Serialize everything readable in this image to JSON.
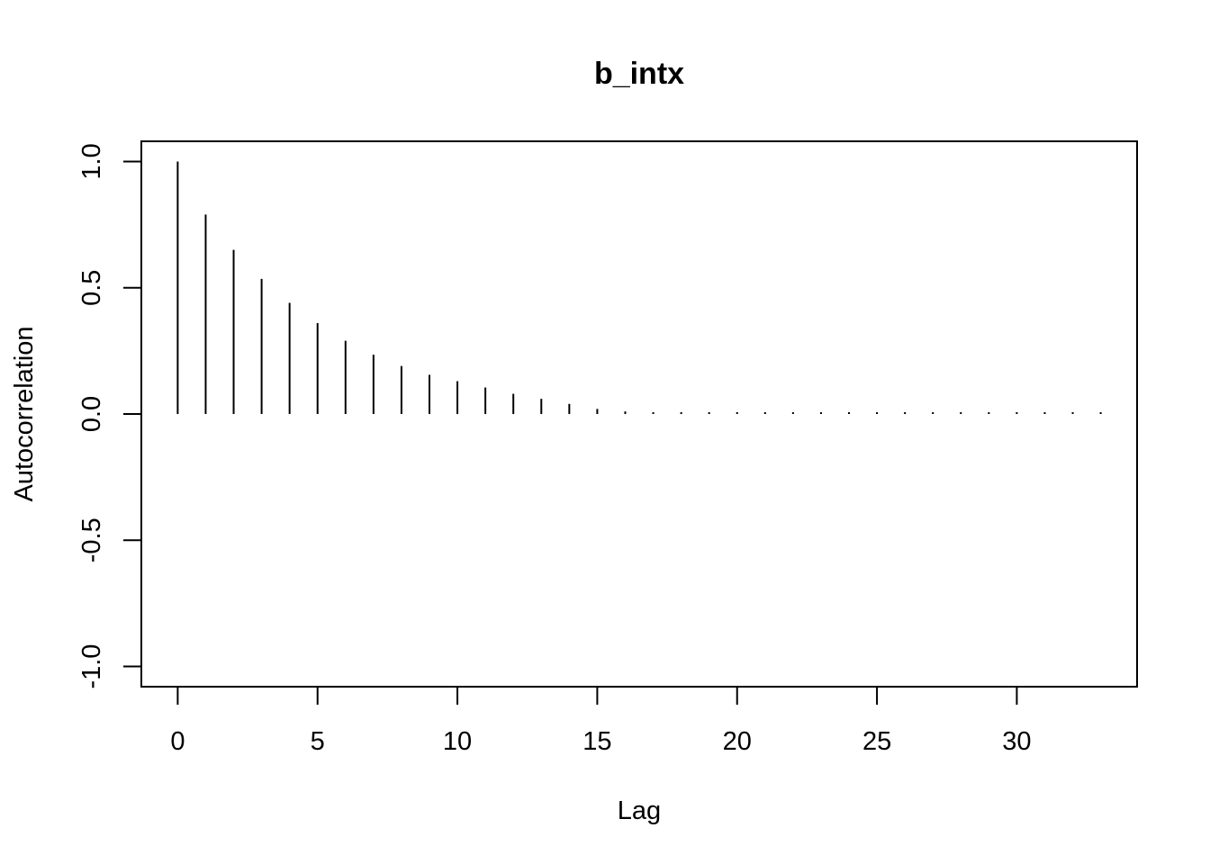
{
  "chart_data": {
    "type": "bar",
    "title": "b_intx",
    "xlabel": "Lag",
    "ylabel": "Autocorrelation",
    "xlim": [
      -1.3,
      34.3
    ],
    "ylim": [
      -1.08,
      1.08
    ],
    "x_ticks": [
      0,
      5,
      10,
      15,
      20,
      25,
      30
    ],
    "x_tick_labels": [
      "0",
      "5",
      "10",
      "15",
      "20",
      "25",
      "30"
    ],
    "y_ticks": [
      -1.0,
      -0.5,
      0.0,
      0.5,
      1.0
    ],
    "y_tick_labels": [
      "-1.0",
      "-0.5",
      "0.0",
      "0.5",
      "1.0"
    ],
    "x": [
      0,
      1,
      2,
      3,
      4,
      5,
      6,
      7,
      8,
      9,
      10,
      11,
      12,
      13,
      14,
      15,
      16,
      17,
      18,
      19,
      20,
      21,
      22,
      23,
      24,
      25,
      26,
      27,
      28,
      29,
      30,
      31,
      32,
      33
    ],
    "values": [
      1.0,
      0.79,
      0.65,
      0.535,
      0.44,
      0.36,
      0.29,
      0.235,
      0.19,
      0.155,
      0.13,
      0.105,
      0.08,
      0.06,
      0.04,
      0.02,
      0.01,
      0.005,
      0.004,
      0.004,
      0.003,
      0.004,
      0.004,
      0.003,
      0.003,
      0.003,
      0.003,
      0.003,
      0.003,
      0.003,
      0.003,
      0.003,
      0.003,
      0.003
    ],
    "grid": false,
    "color": "#000000"
  }
}
